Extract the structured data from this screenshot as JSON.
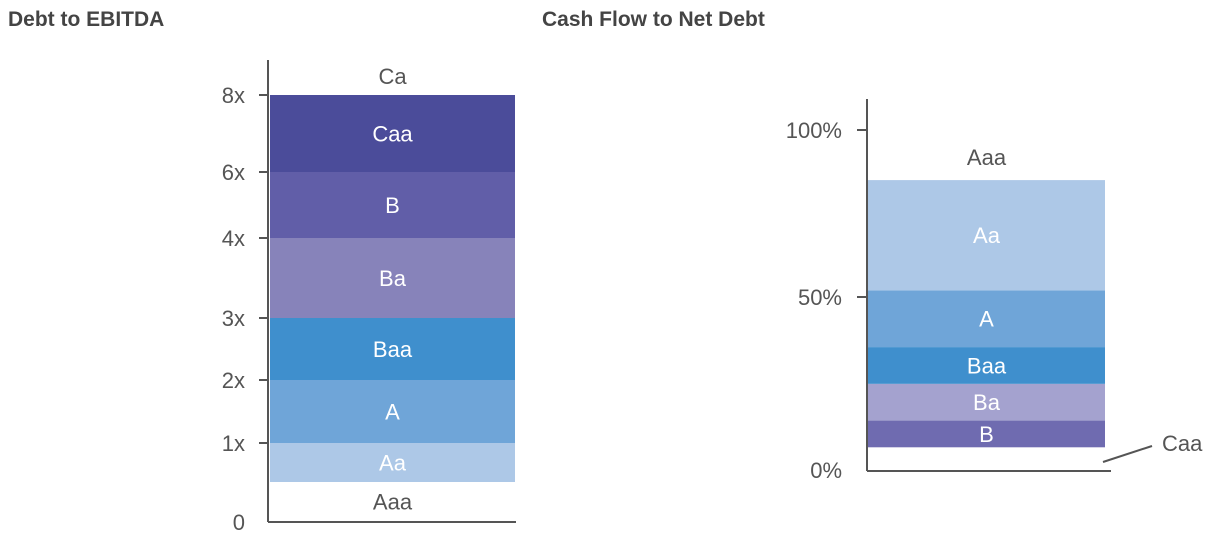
{
  "colors": {
    "axis": "#555555",
    "text_dark": "#555555",
    "text_light": "#ffffff",
    "Aaa": "#ffffff",
    "Aa": "#adc8e7",
    "A": "#6fa5d8",
    "Baa": "#3f8fcd",
    "Ba": "#8783ba",
    "B": "#615ea8",
    "Caa": "#4b4c9a",
    "Ba_right": "#a4a2cf",
    "B_right": "#6f6bb0"
  },
  "chart_data": [
    {
      "type": "bar",
      "title": "Debt to EBITDA",
      "ticks": [
        {
          "label": "0",
          "value": 0
        },
        {
          "label": "1x",
          "value": 1
        },
        {
          "label": "2x",
          "value": 2
        },
        {
          "label": "3x",
          "value": 3
        },
        {
          "label": "4x",
          "value": 4
        },
        {
          "label": "6x",
          "value": 6
        },
        {
          "label": "8x",
          "value": 8
        }
      ],
      "bands": [
        {
          "rating": "Aaa",
          "from": 0,
          "to": 0.5
        },
        {
          "rating": "Aa",
          "from": 0.5,
          "to": 1
        },
        {
          "rating": "A",
          "from": 1,
          "to": 2
        },
        {
          "rating": "Baa",
          "from": 2,
          "to": 3
        },
        {
          "rating": "Ba",
          "from": 3,
          "to": 4
        },
        {
          "rating": "B",
          "from": 4,
          "to": 6
        },
        {
          "rating": "Caa",
          "from": 6,
          "to": 8
        },
        {
          "rating": "Ca",
          "from": 8,
          "to": null
        }
      ]
    },
    {
      "type": "bar",
      "title": "Cash Flow to Net Debt",
      "ticks": [
        {
          "label": "0%",
          "value": 0
        },
        {
          "label": "50%",
          "value": 50
        },
        {
          "label": "100%",
          "value": 100
        }
      ],
      "bands": [
        {
          "rating": "Caa",
          "from": 0,
          "to": 5
        },
        {
          "rating": "B",
          "from": 5,
          "to": 13
        },
        {
          "rating": "Ba",
          "from": 13,
          "to": 24
        },
        {
          "rating": "Baa",
          "from": 24,
          "to": 35
        },
        {
          "rating": "A",
          "from": 35,
          "to": 52
        },
        {
          "rating": "Aa",
          "from": 52,
          "to": 85
        },
        {
          "rating": "Aaa",
          "from": 85,
          "to": null
        }
      ]
    }
  ]
}
